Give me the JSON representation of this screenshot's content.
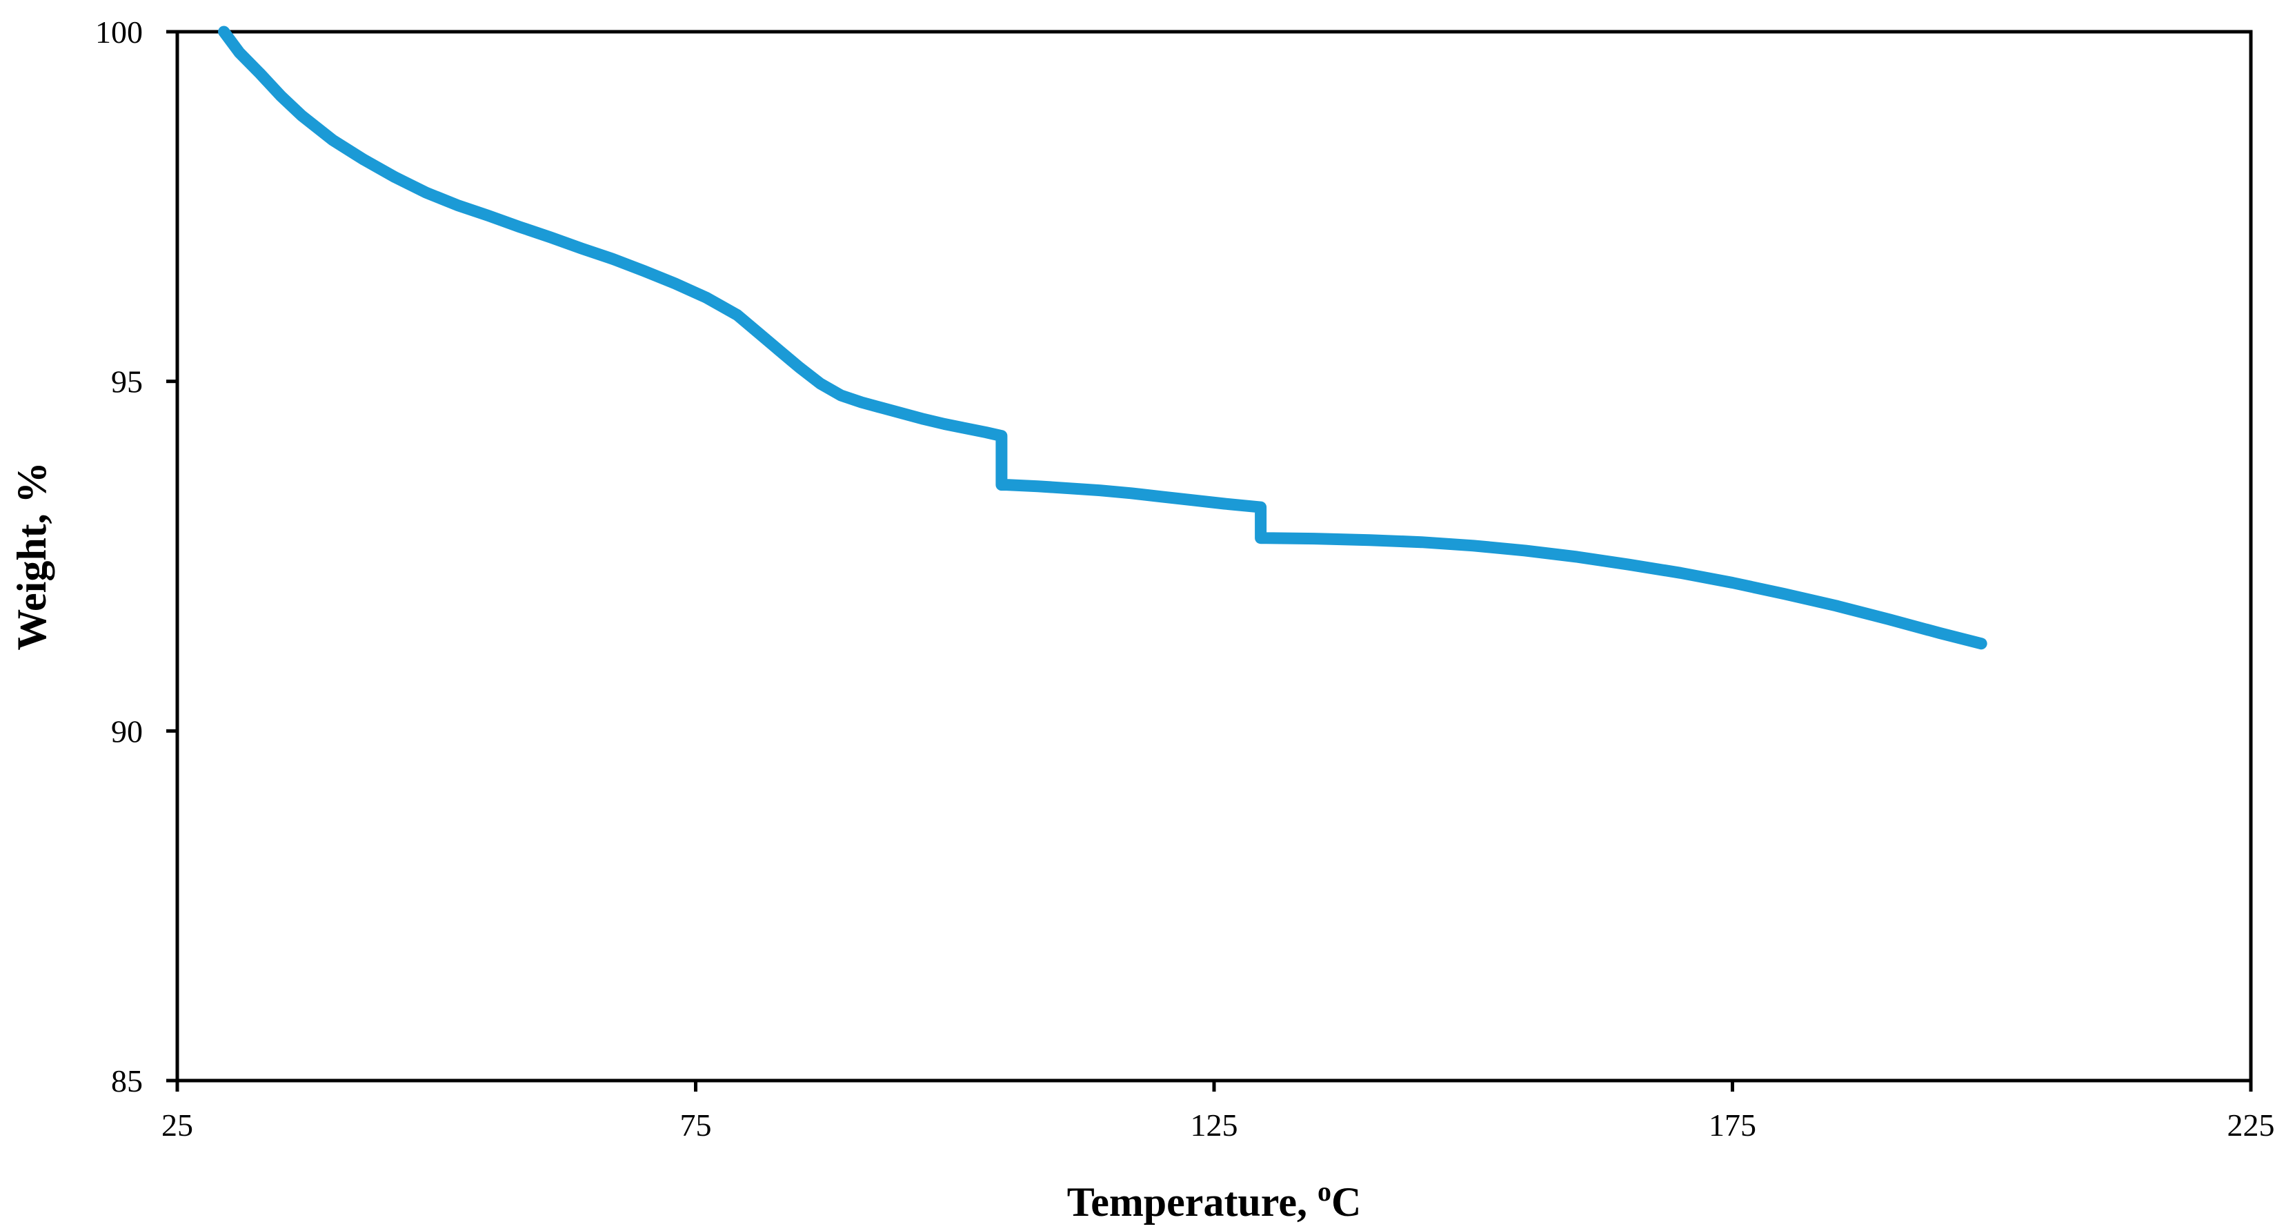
{
  "chart_data": {
    "type": "line",
    "title": "",
    "xlabel": "Temperature, ",
    "xlabel_superscript": "o",
    "xlabel_unit": "C",
    "ylabel": "Weight, %",
    "xlim": [
      25,
      225
    ],
    "ylim": [
      85,
      100
    ],
    "x_ticks": [
      25,
      75,
      125,
      175,
      225
    ],
    "y_ticks": [
      85,
      90,
      95,
      100
    ],
    "x_tick_labels": [
      "25",
      "75",
      "125",
      "175",
      "225"
    ],
    "y_tick_labels": [
      "85",
      "90",
      "95",
      "100"
    ],
    "grid": false,
    "legend": "none",
    "line_color": "#1b9ad6",
    "series": [
      {
        "x": [
          29.5,
          31,
          33,
          35,
          37,
          40,
          43,
          46,
          49,
          52,
          55,
          58,
          61,
          64,
          67,
          70,
          73,
          76,
          79,
          81,
          83,
          85,
          87,
          89,
          91,
          93,
          95,
          97,
          99,
          101,
          103,
          104.5,
          104.5,
          105,
          108,
          111,
          114,
          117,
          120,
          123,
          126,
          129.5,
          129.5,
          130,
          135,
          140,
          145,
          150,
          155,
          160,
          165,
          170,
          175,
          180,
          185,
          190,
          195,
          199
        ],
        "y": [
          100.0,
          99.7,
          99.4,
          99.08,
          98.8,
          98.45,
          98.17,
          97.92,
          97.7,
          97.52,
          97.37,
          97.21,
          97.06,
          96.9,
          96.75,
          96.58,
          96.4,
          96.2,
          95.95,
          95.7,
          95.45,
          95.2,
          94.97,
          94.8,
          94.7,
          94.62,
          94.54,
          94.46,
          94.39,
          94.33,
          94.27,
          94.22,
          93.52,
          93.52,
          93.5,
          93.47,
          93.44,
          93.4,
          93.35,
          93.3,
          93.25,
          93.2,
          92.76,
          92.76,
          92.75,
          92.73,
          92.7,
          92.65,
          92.58,
          92.49,
          92.38,
          92.26,
          92.12,
          91.96,
          91.79,
          91.6,
          91.4,
          91.25
        ]
      }
    ]
  }
}
